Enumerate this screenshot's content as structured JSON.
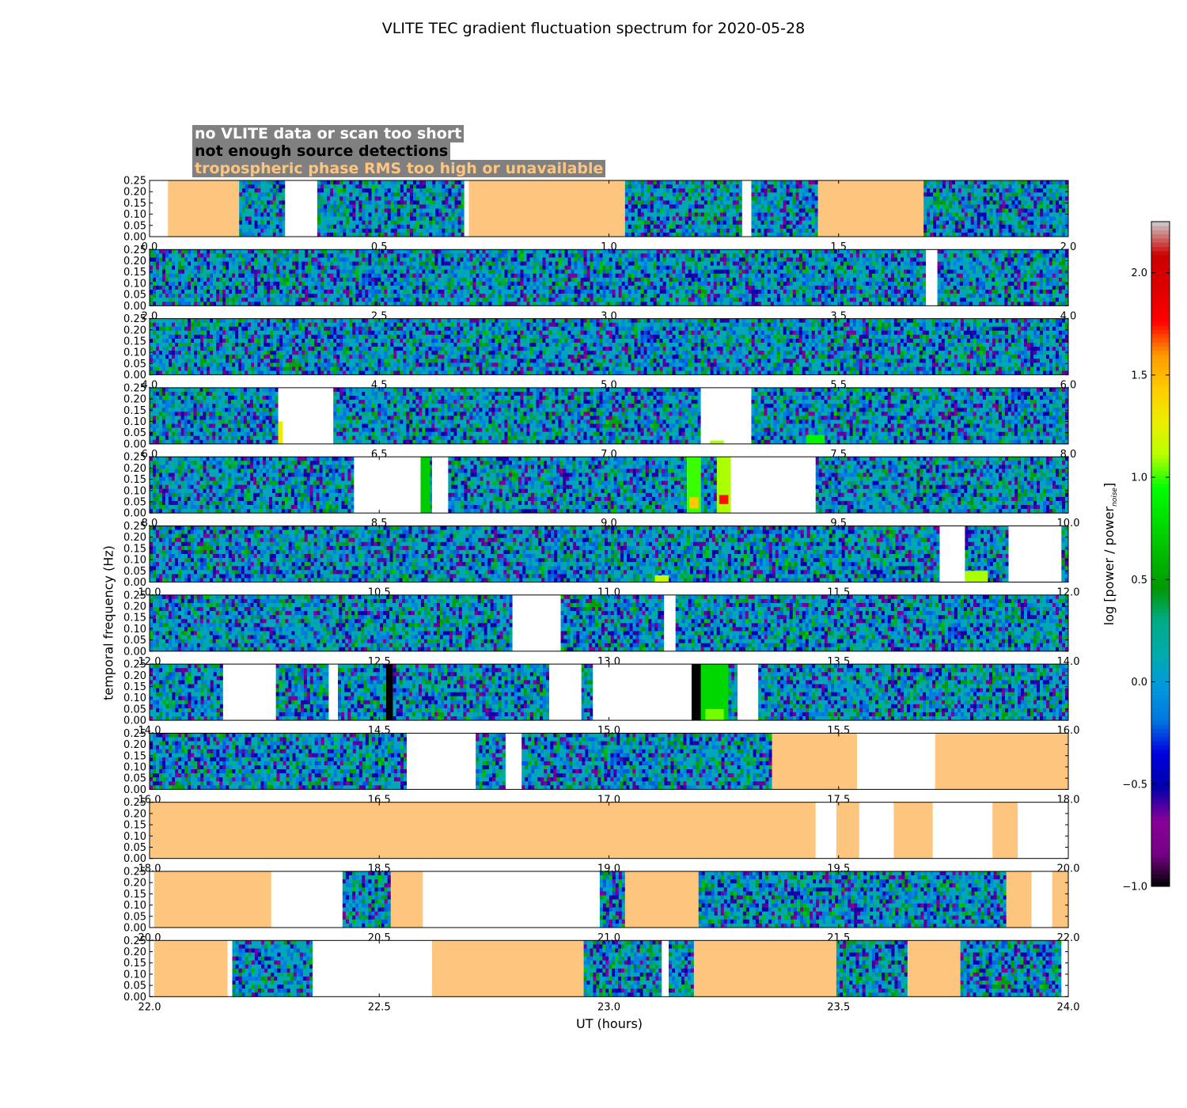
{
  "chart_data": {
    "type": "heatmap",
    "title": "VLITE TEC gradient fluctuation spectrum for 2020-05-28",
    "xlabel": "UT (hours)",
    "ylabel": "temporal frequency (Hz)",
    "colorbar_label_main": "log [power / power",
    "colorbar_label_sub": "noise",
    "colorbar_label_close": "]",
    "colorbar_range": [
      -1.0,
      2.25
    ],
    "colorbar_ticks": [
      "−1.0",
      "−0.5",
      "0.0",
      "0.5",
      "1.0",
      "1.5",
      "2.0"
    ],
    "colorbar_tick_values": [
      -1.0,
      -0.5,
      0.0,
      0.5,
      1.0,
      1.5,
      2.0
    ],
    "ylim": [
      0.0,
      0.25
    ],
    "y_ticks": [
      "0.00",
      "0.05",
      "0.10",
      "0.15",
      "0.20",
      "0.25"
    ],
    "legend": [
      {
        "label": "no VLITE data or scan too short",
        "color": "#ffffff"
      },
      {
        "label": "not enough source detections",
        "color": "#000000"
      },
      {
        "label": "tropospheric phase RMS too high or unavailable",
        "color": "#fdc57e"
      }
    ],
    "panels": [
      {
        "range": [
          0,
          2
        ],
        "x_ticks": [
          "0.0",
          "0.5",
          "1.0",
          "1.5",
          "2.0"
        ],
        "flags": [
          {
            "t0": 0.0,
            "t1": 0.04,
            "type": "nodata"
          },
          {
            "t0": 0.04,
            "t1": 0.195,
            "type": "tropo"
          },
          {
            "t0": 0.195,
            "t1": 0.295,
            "type": "data"
          },
          {
            "t0": 0.295,
            "t1": 0.365,
            "type": "nodata"
          },
          {
            "t0": 0.365,
            "t1": 0.685,
            "type": "data"
          },
          {
            "t0": 0.685,
            "t1": 0.695,
            "type": "nodata"
          },
          {
            "t0": 0.695,
            "t1": 1.035,
            "type": "tropo"
          },
          {
            "t0": 1.035,
            "t1": 1.29,
            "type": "data"
          },
          {
            "t0": 1.29,
            "t1": 1.31,
            "type": "nodata"
          },
          {
            "t0": 1.31,
            "t1": 1.455,
            "type": "data"
          },
          {
            "t0": 1.455,
            "t1": 1.685,
            "type": "tropo"
          },
          {
            "t0": 1.685,
            "t1": 2.0,
            "type": "data"
          }
        ]
      },
      {
        "range": [
          2,
          4
        ],
        "x_ticks": [
          "2.0",
          "2.5",
          "3.0",
          "3.5",
          "4.0"
        ],
        "flags": [
          {
            "t0": 2.0,
            "t1": 3.69,
            "type": "data"
          },
          {
            "t0": 3.69,
            "t1": 3.715,
            "type": "nodata"
          },
          {
            "t0": 3.715,
            "t1": 4.0,
            "type": "data"
          }
        ]
      },
      {
        "range": [
          4,
          6
        ],
        "x_ticks": [
          "4.0",
          "4.5",
          "5.0",
          "5.5",
          "6.0"
        ],
        "flags": [
          {
            "t0": 4.0,
            "t1": 6.0,
            "type": "data"
          }
        ]
      },
      {
        "range": [
          6,
          8
        ],
        "x_ticks": [
          "6.0",
          "6.5",
          "7.0",
          "7.5",
          "8.0"
        ],
        "flags": [
          {
            "t0": 6.0,
            "t1": 6.28,
            "type": "data"
          },
          {
            "t0": 6.28,
            "t1": 6.4,
            "type": "nodata"
          },
          {
            "t0": 6.4,
            "t1": 7.2,
            "type": "data"
          },
          {
            "t0": 7.2,
            "t1": 7.31,
            "type": "nodata"
          },
          {
            "t0": 7.31,
            "t1": 8.0,
            "type": "data"
          }
        ]
      },
      {
        "range": [
          8,
          10
        ],
        "x_ticks": [
          "8.0",
          "8.5",
          "9.0",
          "9.5",
          "10.0"
        ],
        "flags": [
          {
            "t0": 8.0,
            "t1": 8.445,
            "type": "data"
          },
          {
            "t0": 8.445,
            "t1": 8.59,
            "type": "nodata"
          },
          {
            "t0": 8.59,
            "t1": 8.615,
            "type": "data"
          },
          {
            "t0": 8.615,
            "t1": 8.65,
            "type": "nodata"
          },
          {
            "t0": 8.65,
            "t1": 9.17,
            "type": "data"
          },
          {
            "t0": 9.17,
            "t1": 9.2,
            "type": "nodata"
          },
          {
            "t0": 9.2,
            "t1": 9.235,
            "type": "data"
          },
          {
            "t0": 9.235,
            "t1": 9.45,
            "type": "nodata"
          },
          {
            "t0": 9.45,
            "t1": 10.0,
            "type": "data"
          }
        ]
      },
      {
        "range": [
          10,
          12
        ],
        "x_ticks": [
          "10.0",
          "10.5",
          "11.0",
          "11.5",
          "12.0"
        ],
        "flags": [
          {
            "t0": 10.0,
            "t1": 11.72,
            "type": "data"
          },
          {
            "t0": 11.72,
            "t1": 11.775,
            "type": "nodata"
          },
          {
            "t0": 11.775,
            "t1": 11.87,
            "type": "data"
          },
          {
            "t0": 11.87,
            "t1": 11.985,
            "type": "nodata"
          },
          {
            "t0": 11.985,
            "t1": 12.0,
            "type": "data"
          }
        ]
      },
      {
        "range": [
          12,
          14
        ],
        "x_ticks": [
          "12.0",
          "12.5",
          "13.0",
          "13.5",
          "14.0"
        ],
        "flags": [
          {
            "t0": 12.0,
            "t1": 12.79,
            "type": "data"
          },
          {
            "t0": 12.79,
            "t1": 12.895,
            "type": "nodata"
          },
          {
            "t0": 12.895,
            "t1": 13.12,
            "type": "data"
          },
          {
            "t0": 13.12,
            "t1": 13.145,
            "type": "nodata"
          },
          {
            "t0": 13.145,
            "t1": 14.0,
            "type": "data"
          }
        ]
      },
      {
        "range": [
          14,
          16
        ],
        "x_ticks": [
          "14.0",
          "14.5",
          "15.0",
          "15.5",
          "16.0"
        ],
        "flags": [
          {
            "t0": 14.0,
            "t1": 14.16,
            "type": "data"
          },
          {
            "t0": 14.16,
            "t1": 14.275,
            "type": "nodata"
          },
          {
            "t0": 14.275,
            "t1": 14.39,
            "type": "data"
          },
          {
            "t0": 14.39,
            "t1": 14.41,
            "type": "nodata"
          },
          {
            "t0": 14.41,
            "t1": 14.515,
            "type": "data"
          },
          {
            "t0": 14.515,
            "t1": 14.53,
            "type": "nodetect"
          },
          {
            "t0": 14.53,
            "t1": 14.87,
            "type": "data"
          },
          {
            "t0": 14.87,
            "t1": 14.94,
            "type": "nodata"
          },
          {
            "t0": 14.94,
            "t1": 14.965,
            "type": "data"
          },
          {
            "t0": 14.965,
            "t1": 15.18,
            "type": "nodata"
          },
          {
            "t0": 15.18,
            "t1": 15.2,
            "type": "nodetect"
          },
          {
            "t0": 15.2,
            "t1": 15.28,
            "type": "data"
          },
          {
            "t0": 15.28,
            "t1": 15.325,
            "type": "nodata"
          },
          {
            "t0": 15.325,
            "t1": 16.0,
            "type": "data"
          }
        ]
      },
      {
        "range": [
          16,
          18
        ],
        "x_ticks": [
          "16.0",
          "16.5",
          "17.0",
          "17.5",
          "18.0"
        ],
        "flags": [
          {
            "t0": 16.0,
            "t1": 16.56,
            "type": "data"
          },
          {
            "t0": 16.56,
            "t1": 16.71,
            "type": "nodata"
          },
          {
            "t0": 16.71,
            "t1": 16.775,
            "type": "data"
          },
          {
            "t0": 16.775,
            "t1": 16.81,
            "type": "nodata"
          },
          {
            "t0": 16.81,
            "t1": 17.355,
            "type": "data"
          },
          {
            "t0": 17.355,
            "t1": 17.54,
            "type": "tropo"
          },
          {
            "t0": 17.54,
            "t1": 17.71,
            "type": "nodata"
          },
          {
            "t0": 17.71,
            "t1": 18.0,
            "type": "tropo"
          }
        ]
      },
      {
        "range": [
          18,
          20
        ],
        "x_ticks": [
          "18.0",
          "18.5",
          "19.0",
          "19.5",
          "20.0"
        ],
        "flags": [
          {
            "t0": 18.0,
            "t1": 19.45,
            "type": "tropo"
          },
          {
            "t0": 19.45,
            "t1": 19.495,
            "type": "nodata"
          },
          {
            "t0": 19.495,
            "t1": 19.545,
            "type": "tropo"
          },
          {
            "t0": 19.545,
            "t1": 19.62,
            "type": "nodata"
          },
          {
            "t0": 19.62,
            "t1": 19.705,
            "type": "tropo"
          },
          {
            "t0": 19.705,
            "t1": 19.835,
            "type": "nodata"
          },
          {
            "t0": 19.835,
            "t1": 19.89,
            "type": "tropo"
          },
          {
            "t0": 19.89,
            "t1": 20.0,
            "type": "nodata"
          }
        ]
      },
      {
        "range": [
          20,
          22
        ],
        "x_ticks": [
          "20.0",
          "20.5",
          "21.0",
          "21.5",
          "22.0"
        ],
        "flags": [
          {
            "t0": 20.0,
            "t1": 20.01,
            "type": "nodata"
          },
          {
            "t0": 20.01,
            "t1": 20.265,
            "type": "tropo"
          },
          {
            "t0": 20.265,
            "t1": 20.42,
            "type": "nodata"
          },
          {
            "t0": 20.42,
            "t1": 20.525,
            "type": "data"
          },
          {
            "t0": 20.525,
            "t1": 20.595,
            "type": "tropo"
          },
          {
            "t0": 20.595,
            "t1": 20.98,
            "type": "nodata"
          },
          {
            "t0": 20.98,
            "t1": 21.035,
            "type": "data"
          },
          {
            "t0": 21.035,
            "t1": 21.195,
            "type": "tropo"
          },
          {
            "t0": 21.195,
            "t1": 21.865,
            "type": "data"
          },
          {
            "t0": 21.865,
            "t1": 21.92,
            "type": "tropo"
          },
          {
            "t0": 21.92,
            "t1": 21.965,
            "type": "nodata"
          },
          {
            "t0": 21.965,
            "t1": 22.0,
            "type": "tropo"
          }
        ]
      },
      {
        "range": [
          22,
          24
        ],
        "x_ticks": [
          "22.0",
          "22.5",
          "23.0",
          "23.5",
          "24.0"
        ],
        "flags": [
          {
            "t0": 22.0,
            "t1": 22.01,
            "type": "nodata"
          },
          {
            "t0": 22.01,
            "t1": 22.17,
            "type": "tropo"
          },
          {
            "t0": 22.17,
            "t1": 22.18,
            "type": "nodata"
          },
          {
            "t0": 22.18,
            "t1": 22.355,
            "type": "data"
          },
          {
            "t0": 22.355,
            "t1": 22.615,
            "type": "nodata"
          },
          {
            "t0": 22.615,
            "t1": 22.945,
            "type": "tropo"
          },
          {
            "t0": 22.945,
            "t1": 23.115,
            "type": "data"
          },
          {
            "t0": 23.115,
            "t1": 23.13,
            "type": "nodata"
          },
          {
            "t0": 23.13,
            "t1": 23.185,
            "type": "data"
          },
          {
            "t0": 23.185,
            "t1": 23.495,
            "type": "tropo"
          },
          {
            "t0": 23.495,
            "t1": 23.65,
            "type": "data"
          },
          {
            "t0": 23.65,
            "t1": 23.765,
            "type": "tropo"
          },
          {
            "t0": 23.765,
            "t1": 23.985,
            "type": "data"
          },
          {
            "t0": 23.985,
            "t1": 24.0,
            "type": "nodata"
          }
        ]
      }
    ],
    "hotspots": [
      {
        "t": 6.28,
        "dt": 0.01,
        "f0": 0.0,
        "f1": 0.1,
        "v": 1.3
      },
      {
        "t": 7.22,
        "dt": 0.03,
        "f0": 0.0,
        "f1": 0.015,
        "v": 1.1
      },
      {
        "t": 7.43,
        "dt": 0.04,
        "f0": 0.0,
        "f1": 0.04,
        "v": 0.9
      },
      {
        "t": 9.17,
        "dt": 0.03,
        "f0": 0.0,
        "f1": 0.25,
        "v": 1.0
      },
      {
        "t": 9.175,
        "dt": 0.02,
        "f0": 0.02,
        "f1": 0.07,
        "v": 1.45
      },
      {
        "t": 9.235,
        "dt": 0.03,
        "f0": 0.0,
        "f1": 0.25,
        "v": 1.1
      },
      {
        "t": 9.24,
        "dt": 0.02,
        "f0": 0.04,
        "f1": 0.08,
        "v": 1.75
      },
      {
        "t": 11.775,
        "dt": 0.05,
        "f0": 0.0,
        "f1": 0.05,
        "v": 1.1
      },
      {
        "t": 11.1,
        "dt": 0.03,
        "f0": 0.0,
        "f1": 0.03,
        "v": 1.15
      },
      {
        "t": 15.2,
        "dt": 0.06,
        "f0": 0.0,
        "f1": 0.25,
        "v": 0.75
      },
      {
        "t": 15.21,
        "dt": 0.04,
        "f0": 0.0,
        "f1": 0.05,
        "v": 1.05
      },
      {
        "t": 8.59,
        "dt": 0.02,
        "f0": 0.0,
        "f1": 0.25,
        "v": 0.7
      }
    ]
  }
}
